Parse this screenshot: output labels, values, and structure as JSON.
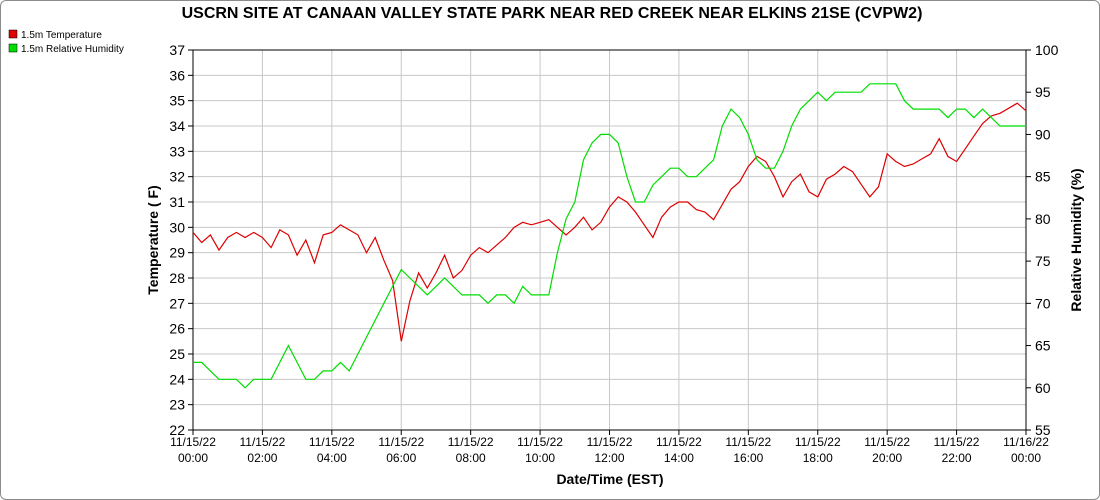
{
  "chart_data": {
    "type": "line",
    "title": "USCRN SITE AT CANAAN VALLEY STATE PARK NEAR RED CREEK NEAR ELKINS 21SE (CVPW2)",
    "xlabel": "Date/Time (EST)",
    "ylabel": "Temperature ( F)",
    "y2label": "Relative Humidity (%)",
    "ylim": [
      22,
      37
    ],
    "y2lim": [
      55,
      100
    ],
    "grid": true,
    "legend_placement": "top-left",
    "x_ticks": [
      {
        "date": "11/15/22",
        "time": "00:00"
      },
      {
        "date": "11/15/22",
        "time": "02:00"
      },
      {
        "date": "11/15/22",
        "time": "04:00"
      },
      {
        "date": "11/15/22",
        "time": "06:00"
      },
      {
        "date": "11/15/22",
        "time": "08:00"
      },
      {
        "date": "11/15/22",
        "time": "10:00"
      },
      {
        "date": "11/15/22",
        "time": "12:00"
      },
      {
        "date": "11/15/22",
        "time": "14:00"
      },
      {
        "date": "11/15/22",
        "time": "16:00"
      },
      {
        "date": "11/15/22",
        "time": "18:00"
      },
      {
        "date": "11/15/22",
        "time": "20:00"
      },
      {
        "date": "11/15/22",
        "time": "22:00"
      },
      {
        "date": "11/16/22",
        "time": "00:00"
      }
    ],
    "y_ticks": [
      22,
      23,
      24,
      25,
      26,
      27,
      28,
      29,
      30,
      31,
      32,
      33,
      34,
      35,
      36,
      37
    ],
    "y2_ticks": [
      55,
      60,
      65,
      70,
      75,
      80,
      85,
      90,
      95,
      100
    ],
    "series": [
      {
        "name": "1.5m Temperature",
        "axis": "left",
        "color": "#dd0000",
        "x_hours": [
          0,
          0.25,
          0.5,
          0.75,
          1,
          1.25,
          1.5,
          1.75,
          2,
          2.25,
          2.5,
          2.75,
          3,
          3.25,
          3.5,
          3.75,
          4,
          4.25,
          4.5,
          4.75,
          5,
          5.25,
          5.5,
          5.75,
          6,
          6.25,
          6.5,
          6.75,
          7,
          7.25,
          7.5,
          7.75,
          8,
          8.25,
          8.5,
          8.75,
          9,
          9.25,
          9.5,
          9.75,
          10,
          10.25,
          10.5,
          10.75,
          11,
          11.25,
          11.5,
          11.75,
          12,
          12.25,
          12.5,
          12.75,
          13,
          13.25,
          13.5,
          13.75,
          14,
          14.25,
          14.5,
          14.75,
          15,
          15.25,
          15.5,
          15.75,
          16,
          16.25,
          16.5,
          16.75,
          17,
          17.25,
          17.5,
          17.75,
          18,
          18.25,
          18.5,
          18.75,
          19,
          19.25,
          19.5,
          19.75,
          20,
          20.25,
          20.5,
          20.75,
          21,
          21.25,
          21.5,
          21.75,
          22,
          22.25,
          22.5,
          22.75,
          23,
          23.25,
          23.5,
          23.75,
          24
        ],
        "values": [
          29.8,
          29.4,
          29.7,
          29.1,
          29.6,
          29.8,
          29.6,
          29.8,
          29.6,
          29.2,
          29.9,
          29.7,
          28.9,
          29.5,
          28.6,
          29.7,
          29.8,
          30.1,
          29.9,
          29.7,
          29.0,
          29.6,
          28.7,
          27.9,
          25.5,
          27.1,
          28.2,
          27.6,
          28.2,
          28.9,
          28.0,
          28.3,
          28.9,
          29.2,
          29.0,
          29.3,
          29.6,
          30.0,
          30.2,
          30.1,
          30.2,
          30.3,
          30.0,
          29.7,
          30.0,
          30.4,
          29.9,
          30.2,
          30.8,
          31.2,
          31.0,
          30.6,
          30.1,
          29.6,
          30.4,
          30.8,
          31.0,
          31.0,
          30.7,
          30.6,
          30.3,
          30.9,
          31.5,
          31.8,
          32.4,
          32.8,
          32.6,
          32.0,
          31.2,
          31.8,
          32.1,
          31.4,
          31.2,
          31.9,
          32.1,
          32.4,
          32.2,
          31.7,
          31.2,
          31.6,
          32.9,
          32.6,
          32.4,
          32.5,
          32.7,
          32.9,
          33.5,
          32.8,
          32.6,
          33.1,
          33.6,
          34.1,
          34.4,
          34.5,
          34.7,
          34.9,
          34.6
        ]
      },
      {
        "name": "1.5m Relative Humidity",
        "axis": "right",
        "color": "#00dd00",
        "x_hours": [
          0,
          0.25,
          0.5,
          0.75,
          1,
          1.25,
          1.5,
          1.75,
          2,
          2.25,
          2.5,
          2.75,
          3,
          3.25,
          3.5,
          3.75,
          4,
          4.25,
          4.5,
          4.75,
          5,
          5.25,
          5.5,
          5.75,
          6,
          6.25,
          6.5,
          6.75,
          7,
          7.25,
          7.5,
          7.75,
          8,
          8.25,
          8.5,
          8.75,
          9,
          9.25,
          9.5,
          9.75,
          10,
          10.25,
          10.5,
          10.75,
          11,
          11.25,
          11.5,
          11.75,
          12,
          12.25,
          12.5,
          12.75,
          13,
          13.25,
          13.5,
          13.75,
          14,
          14.25,
          14.5,
          14.75,
          15,
          15.25,
          15.5,
          15.75,
          16,
          16.25,
          16.5,
          16.75,
          17,
          17.25,
          17.5,
          17.75,
          18,
          18.25,
          18.5,
          18.75,
          19,
          19.25,
          19.5,
          19.75,
          20,
          20.25,
          20.5,
          20.75,
          21,
          21.25,
          21.5,
          21.75,
          22,
          22.25,
          22.5,
          22.75,
          23,
          23.25,
          23.5,
          23.75,
          24
        ],
        "values": [
          63,
          63,
          62,
          61,
          61,
          61,
          60,
          61,
          61,
          61,
          63,
          65,
          63,
          61,
          61,
          62,
          62,
          63,
          62,
          64,
          66,
          68,
          70,
          72,
          74,
          73,
          72,
          71,
          72,
          73,
          72,
          71,
          71,
          71,
          70,
          71,
          71,
          70,
          72,
          71,
          71,
          71,
          76,
          80,
          82,
          87,
          89,
          90,
          90,
          89,
          85,
          82,
          82,
          84,
          85,
          86,
          86,
          85,
          85,
          86,
          87,
          91,
          93,
          92,
          90,
          87,
          86,
          86,
          88,
          91,
          93,
          94,
          95,
          94,
          95,
          95,
          95,
          95,
          96,
          96,
          96,
          96,
          94,
          93,
          93,
          93,
          93,
          92,
          93,
          93,
          92,
          93,
          92,
          91,
          91,
          91,
          91
        ]
      }
    ]
  }
}
